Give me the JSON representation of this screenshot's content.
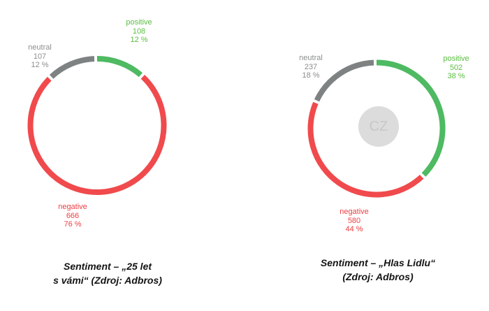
{
  "chart_data": [
    {
      "type": "pie",
      "variant": "donut",
      "title": "Sentiment – „25 let s vámi“ (Zdroj: Adbros)",
      "title_lines": [
        "Sentiment – „25 let",
        "s vámi“ (Zdroj: Adbros)"
      ],
      "categories": [
        "positive",
        "negative",
        "neutral"
      ],
      "values": [
        108,
        666,
        107
      ],
      "percents": [
        12,
        76,
        12
      ],
      "value_labels": [
        "108",
        "666",
        "107"
      ],
      "pct_labels": [
        "12 %",
        "76 %",
        "12 %"
      ],
      "segment_colors": [
        "#4eba62",
        "#f04a4d",
        "#7e8282"
      ],
      "label_colors": [
        "#5abe41",
        "#ee3e41",
        "#8b8e8e"
      ],
      "center_badge": null
    },
    {
      "type": "pie",
      "variant": "donut",
      "title": "Sentiment – „Hlas Lidlu“ (Zdroj: Adbros)",
      "title_lines": [
        "Sentiment – „Hlas Lidlu“",
        "(Zdroj: Adbros)"
      ],
      "categories": [
        "positive",
        "negative",
        "neutral"
      ],
      "values": [
        502,
        580,
        237
      ],
      "percents": [
        38,
        44,
        18
      ],
      "value_labels": [
        "502",
        "580",
        "237"
      ],
      "pct_labels": [
        "38 %",
        "44 %",
        "18 %"
      ],
      "segment_colors": [
        "#4eba62",
        "#f04a4d",
        "#7e8282"
      ],
      "label_colors": [
        "#5abe41",
        "#ee3e41",
        "#8b8e8e"
      ],
      "center_badge": "CZ",
      "center_badge_bg": "#dcdcdc",
      "center_badge_color": "#c6c8c8"
    }
  ]
}
